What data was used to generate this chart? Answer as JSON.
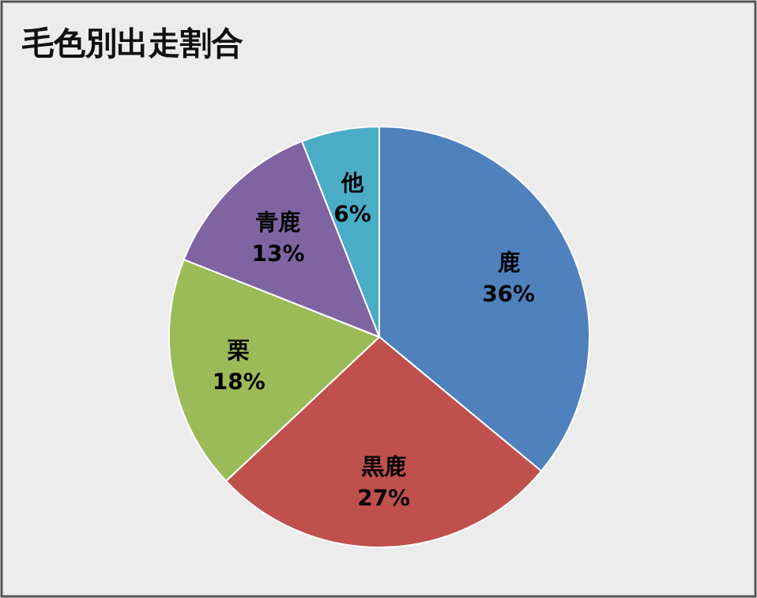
{
  "chart_data": {
    "type": "pie",
    "title": "毛色別出走割合",
    "categories": [
      "鹿",
      "黒鹿",
      "栗",
      "青鹿",
      "他"
    ],
    "values": [
      36,
      27,
      18,
      13,
      6
    ],
    "value_labels": [
      "36%",
      "27%",
      "18%",
      "13%",
      "6%"
    ],
    "colors": [
      "#4f81bd",
      "#c0504d",
      "#9bbb59",
      "#8064a2",
      "#4bacc6"
    ]
  }
}
